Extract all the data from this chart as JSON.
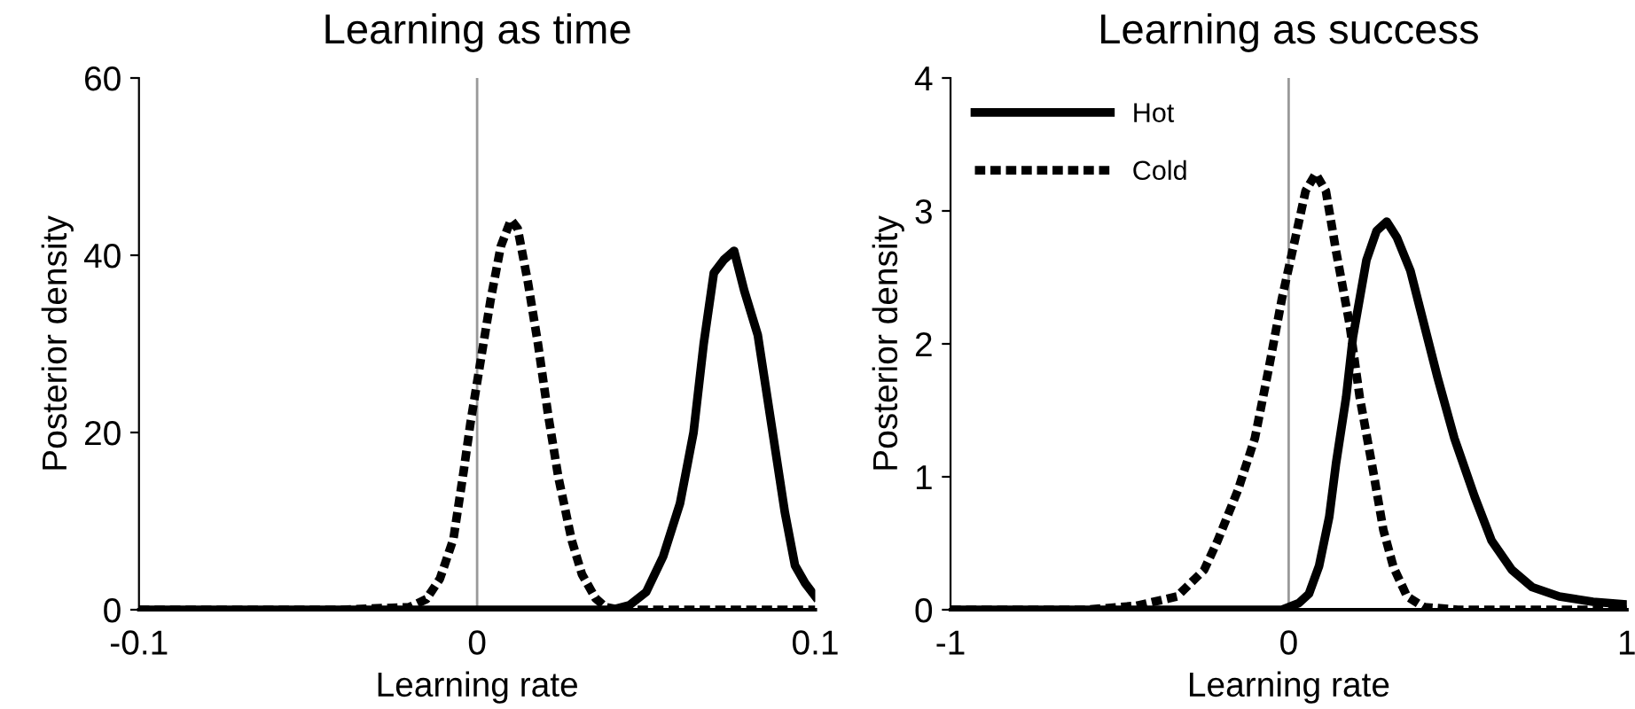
{
  "chart_data": [
    {
      "type": "line",
      "title": "Learning as time",
      "xlabel": "Learning rate",
      "ylabel": "Posterior density",
      "xlim": [
        -0.1,
        0.1
      ],
      "xticks": [
        -0.1,
        0,
        0.1
      ],
      "ylim": [
        0,
        60
      ],
      "yticks": [
        0,
        20,
        40,
        60
      ],
      "grid": false,
      "legend": false,
      "marker": "none",
      "ref_lines": [
        {
          "axis": "x",
          "value": 0,
          "color": "#999999",
          "line_style": "solid"
        }
      ],
      "series": [
        {
          "color": "#000000",
          "line_style": "solid",
          "x": [
            -0.1,
            0.04,
            0.045,
            0.05,
            0.055,
            0.06,
            0.064,
            0.067,
            0.07,
            0.073,
            0.076,
            0.079,
            0.083,
            0.087,
            0.091,
            0.094,
            0.097,
            0.1
          ],
          "values": [
            0,
            0,
            0.5,
            2,
            6,
            12,
            20,
            30,
            38,
            39.5,
            40.5,
            36,
            31,
            21,
            11,
            5,
            3,
            1.5
          ]
        },
        {
          "color": "#000000",
          "line_style": "dashed",
          "x": [
            -0.1,
            -0.04,
            -0.02,
            -0.015,
            -0.011,
            -0.007,
            -0.004,
            -0.002,
            0.001,
            0.004,
            0.007,
            0.01,
            0.012,
            0.015,
            0.018,
            0.021,
            0.024,
            0.028,
            0.031,
            0.035,
            0.038,
            0.042,
            0.1
          ],
          "values": [
            0,
            0,
            0.3,
            1.2,
            3.5,
            8,
            15.6,
            21,
            28,
            35,
            41,
            44,
            43,
            37,
            30,
            22,
            15,
            7.8,
            4,
            1.3,
            0.3,
            0,
            0
          ]
        }
      ]
    },
    {
      "type": "line",
      "title": "Learning as success",
      "xlabel": "Learning rate",
      "ylabel": "Posterior density",
      "xlim": [
        -1,
        1
      ],
      "xticks": [
        -1,
        0,
        1
      ],
      "ylim": [
        0,
        4
      ],
      "yticks": [
        0,
        1,
        2,
        3,
        4
      ],
      "grid": false,
      "legend": "top left",
      "marker": "none",
      "ref_lines": [
        {
          "axis": "x",
          "value": 0,
          "color": "#999999",
          "line_style": "solid"
        }
      ],
      "series": [
        {
          "name": "Hot",
          "color": "#000000",
          "line_style": "solid",
          "x": [
            -1,
            -0.02,
            0.03,
            0.06,
            0.09,
            0.12,
            0.14,
            0.17,
            0.19,
            0.23,
            0.26,
            0.29,
            0.32,
            0.36,
            0.39,
            0.44,
            0.49,
            0.55,
            0.6,
            0.66,
            0.72,
            0.8,
            0.9,
            1
          ],
          "values": [
            0,
            0,
            0.05,
            0.12,
            0.33,
            0.7,
            1.1,
            1.6,
            2.05,
            2.63,
            2.85,
            2.92,
            2.8,
            2.55,
            2.25,
            1.75,
            1.29,
            0.85,
            0.52,
            0.3,
            0.17,
            0.1,
            0.06,
            0.04
          ]
        },
        {
          "name": "Cold",
          "color": "#000000",
          "line_style": "dashed",
          "x": [
            -1,
            -0.6,
            -0.45,
            -0.33,
            -0.25,
            -0.21,
            -0.15,
            -0.1,
            -0.06,
            -0.02,
            0.02,
            0.05,
            0.08,
            0.11,
            0.14,
            0.18,
            0.21,
            0.25,
            0.28,
            0.31,
            0.35,
            0.4,
            0.5,
            1
          ],
          "values": [
            0,
            0,
            0.03,
            0.1,
            0.3,
            0.52,
            0.9,
            1.29,
            1.8,
            2.34,
            2.8,
            3.15,
            3.28,
            3.15,
            2.7,
            2.15,
            1.6,
            1.04,
            0.6,
            0.32,
            0.1,
            0.02,
            0,
            0
          ]
        }
      ]
    }
  ]
}
